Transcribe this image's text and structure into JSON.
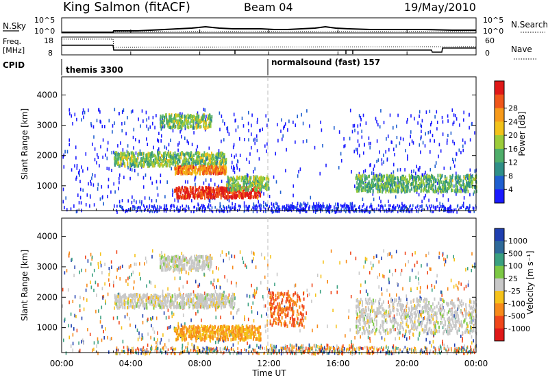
{
  "header": {
    "station": "King Salmon (fitACF)",
    "beam": "Beam 04",
    "date": "19/May/2010"
  },
  "nsky_panel": {
    "left_label": "N.Sky",
    "right_label": "N.Search",
    "tick_top": "10^5",
    "tick_bottom": "10^0"
  },
  "freq_panel": {
    "left_label_1": "Freq.",
    "left_label_2": "[MHz]",
    "right_label": "Nave",
    "left_ticks": [
      "18",
      "8"
    ],
    "right_ticks": [
      "60",
      "0"
    ]
  },
  "cpid": {
    "label": "CPID",
    "modes": [
      "themis 3300",
      "normalsound (fast) 157"
    ]
  },
  "chart_data": [
    {
      "type": "heatmap",
      "name": "power-panel",
      "xlabel": "Time UT",
      "ylabel": "Slant Range [km]",
      "x_range_hours": [
        0,
        24
      ],
      "ylim": [
        180,
        4600
      ],
      "y_ticks": [
        "1000",
        "2000",
        "3000",
        "4000"
      ],
      "colorbar": {
        "label": "Power [dB]",
        "ticks": [
          "4",
          "8",
          "12",
          "16",
          "20",
          "24",
          "28"
        ],
        "colors": [
          "#1a1aff",
          "#1f5fd0",
          "#2f8f88",
          "#4fae6a",
          "#9ccc3a",
          "#f2c21a",
          "#f79a1a",
          "#f0561a",
          "#e01818"
        ]
      },
      "features": [
        {
          "t_start": "05:40",
          "t_end": "08:40",
          "range_km": [
            2950,
            3400
          ],
          "level_db": 14
        },
        {
          "t_start": "03:00",
          "t_end": "09:30",
          "range_km": [
            1700,
            2150
          ],
          "level_db": 14
        },
        {
          "t_start": "06:30",
          "t_end": "09:30",
          "range_km": [
            1450,
            1700
          ],
          "level_db": 22
        },
        {
          "t_start": "06:30",
          "t_end": "11:30",
          "range_km": [
            650,
            1000
          ],
          "level_db": 28
        },
        {
          "t_start": "09:30",
          "t_end": "12:00",
          "range_km": [
            900,
            1350
          ],
          "level_db": 14
        },
        {
          "t_start": "17:00",
          "t_end": "24:00",
          "range_km": [
            850,
            1400
          ],
          "level_db": 12
        }
      ]
    },
    {
      "type": "heatmap",
      "name": "velocity-panel",
      "xlabel": "Time UT",
      "ylabel": "Slant Range [km]",
      "x_range_hours": [
        0,
        24
      ],
      "ylim": [
        180,
        4600
      ],
      "y_ticks": [
        "1000",
        "2000",
        "3000",
        "4000"
      ],
      "colorbar": {
        "label": "Velocity [m s⁻¹]",
        "ticks": [
          "1000",
          "500",
          "100",
          "25",
          "-25",
          "-100",
          "-500",
          "-1000"
        ],
        "colors": [
          "#1f3fb0",
          "#2f6a9a",
          "#3aa080",
          "#7cc844",
          "#c8c8c8",
          "#f5c21a",
          "#f78a1a",
          "#f0461a",
          "#e01818"
        ]
      },
      "features": [
        {
          "t_start": "05:40",
          "t_end": "08:40",
          "range_km": [
            2950,
            3400
          ],
          "velocity_ms": 0
        },
        {
          "t_start": "03:00",
          "t_end": "10:00",
          "range_km": [
            1700,
            2150
          ],
          "velocity_ms": 0
        },
        {
          "t_start": "06:30",
          "t_end": "11:30",
          "range_km": [
            650,
            1100
          ],
          "velocity_ms": -100
        },
        {
          "t_start": "12:00",
          "t_end": "14:00",
          "range_km": [
            1100,
            2200
          ],
          "velocity_ms": -500
        },
        {
          "t_start": "17:00",
          "t_end": "24:00",
          "range_km": [
            850,
            2000
          ],
          "velocity_ms": 0
        }
      ]
    }
  ],
  "x_axis": {
    "ticks": [
      "00:00",
      "04:00",
      "08:00",
      "12:00",
      "16:00",
      "20:00",
      "00:00"
    ],
    "label": "Time UT"
  }
}
